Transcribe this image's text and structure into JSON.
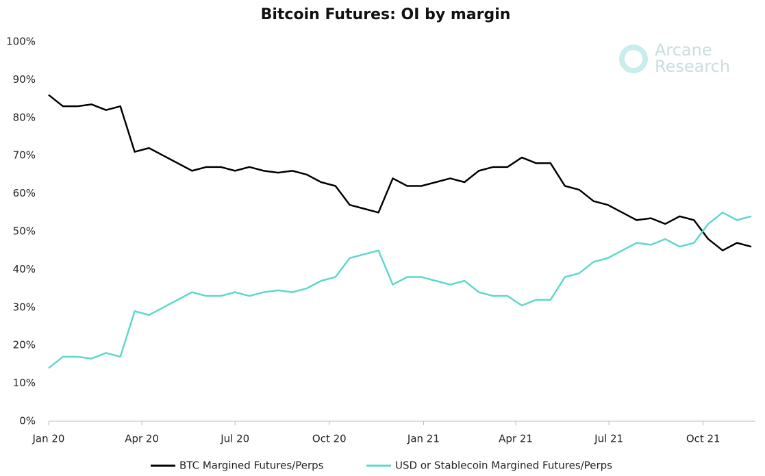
{
  "chart_data": {
    "type": "line",
    "title": "Bitcoin Futures: OI by margin",
    "watermark": [
      "Arcane",
      "Research"
    ],
    "x": [
      0,
      14,
      28,
      42,
      56,
      70,
      84,
      98,
      112,
      126,
      140,
      154,
      168,
      182,
      196,
      210,
      224,
      238,
      252,
      266,
      280,
      294,
      308,
      322,
      336,
      350,
      364,
      378,
      392,
      406,
      420,
      434,
      448,
      462,
      476,
      490,
      504,
      518,
      532,
      546,
      560,
      574,
      588,
      602,
      616,
      630,
      644,
      658,
      672,
      686
    ],
    "xlim": [
      0,
      690
    ],
    "xticks": [
      {
        "value": 0,
        "label": "Jan 20"
      },
      {
        "value": 91,
        "label": "Apr 20"
      },
      {
        "value": 182,
        "label": "Jul 20"
      },
      {
        "value": 274,
        "label": "Oct 20"
      },
      {
        "value": 366,
        "label": "Jan 21"
      },
      {
        "value": 456,
        "label": "Apr 21"
      },
      {
        "value": 547,
        "label": "Jul 21"
      },
      {
        "value": 639,
        "label": "Oct 21"
      }
    ],
    "ylim": [
      0,
      100
    ],
    "yticks": [
      {
        "value": 0,
        "label": "0%"
      },
      {
        "value": 10,
        "label": "10%"
      },
      {
        "value": 20,
        "label": "20%"
      },
      {
        "value": 30,
        "label": "30%"
      },
      {
        "value": 40,
        "label": "40%"
      },
      {
        "value": 50,
        "label": "50%"
      },
      {
        "value": 60,
        "label": "60%"
      },
      {
        "value": 70,
        "label": "70%"
      },
      {
        "value": 80,
        "label": "80%"
      },
      {
        "value": 90,
        "label": "90%"
      },
      {
        "value": 100,
        "label": "100%"
      }
    ],
    "series": [
      {
        "name": "BTC Margined Futures/Perps",
        "color": "#000000",
        "values": [
          86,
          83,
          83,
          83.5,
          82,
          83,
          71,
          72,
          70,
          68,
          66,
          67,
          67,
          66,
          67,
          66,
          65.5,
          66,
          65,
          63,
          62,
          57,
          56,
          55,
          64,
          62,
          62,
          63,
          64,
          63,
          66,
          67,
          67,
          69.5,
          68,
          68,
          62,
          61,
          58,
          57,
          55,
          53,
          53.5,
          52,
          54,
          53,
          48,
          45,
          47,
          46
        ]
      },
      {
        "name": "USD or Stablecoin Margined Futures/Perps",
        "color": "#5ed8cb",
        "values": [
          14,
          17,
          17,
          16.5,
          18,
          17,
          29,
          28,
          30,
          32,
          34,
          33,
          33,
          34,
          33,
          34,
          34.5,
          34,
          35,
          37,
          38,
          43,
          44,
          45,
          36,
          38,
          38,
          37,
          36,
          37,
          34,
          33,
          33,
          30.5,
          32,
          32,
          38,
          39,
          42,
          43,
          45,
          47,
          46.5,
          48,
          46,
          47,
          52,
          55,
          53,
          54
        ]
      }
    ]
  }
}
